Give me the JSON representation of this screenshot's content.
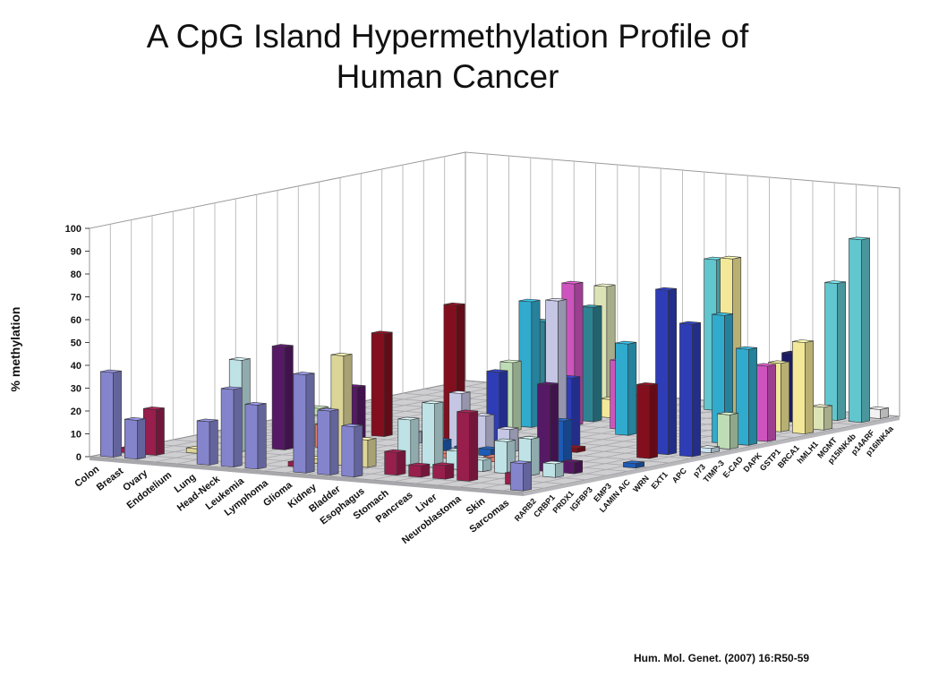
{
  "title_line1": "A CpG Island Hypermethylation Profile of",
  "title_line2": "Human Cancer",
  "citation": "Hum. Mol. Genet. (2007) 16:R50-59",
  "chart_data": {
    "type": "bar3d",
    "title": "A CpG Island Hypermethylation Profile of Human Cancer",
    "zlabel": "% methylation",
    "zlim": [
      0,
      100
    ],
    "z_ticks": [
      "0",
      "10",
      "20",
      "30",
      "40",
      "50",
      "60",
      "70",
      "80",
      "90",
      "100"
    ],
    "cancers": [
      "Colon",
      "Breast",
      "Ovary",
      "Endotelium",
      "Lung",
      "Head-Neck",
      "Leukemia",
      "Lymphoma",
      "Glioma",
      "Kidney",
      "Bladder",
      "Esophagus",
      "Stomach",
      "Pancreas",
      "Liver",
      "Neuroblastoma",
      "Skin",
      "Sarcomas"
    ],
    "genes": [
      "p16INK4a",
      "p14ARF",
      "p15INK4b",
      "MGMT",
      "hMLH1",
      "BRCA1",
      "GSTP1",
      "DAPK",
      "E-CAD",
      "TIMP-3",
      "p73",
      "APC",
      "EXT1",
      "WRN",
      "LAMIN A/C",
      "EMP3",
      "IGFBP3",
      "PRDX1",
      "CRBP1",
      "RARB2"
    ],
    "gene_colors": [
      "#8b8bd8",
      "#a02050",
      "#e8e0a0",
      "#c8eef2",
      "#5a1a6a",
      "#f08070",
      "#2060c0",
      "#cfd0f0",
      "#8a1020",
      "#3040c0",
      "#d8f0ff",
      "#c8e8c0",
      "#33b3d8",
      "#d858c8",
      "#308a9a",
      "#fff4a0",
      "#e8f0c0",
      "#1c1c6a",
      "#66d0d8",
      "#ffffff"
    ],
    "values": [
      {
        "cancer": "Colon",
        "gene": "p16INK4a",
        "value": 37
      },
      {
        "cancer": "Breast",
        "gene": "p16INK4a",
        "value": 17
      },
      {
        "cancer": "Lung",
        "gene": "p16INK4a",
        "value": 19
      },
      {
        "cancer": "Head-Neck",
        "gene": "p16INK4a",
        "value": 34
      },
      {
        "cancer": "Leukemia",
        "gene": "p16INK4a",
        "value": 28
      },
      {
        "cancer": "Glioma",
        "gene": "p16INK4a",
        "value": 43
      },
      {
        "cancer": "Kidney",
        "gene": "p16INK4a",
        "value": 28
      },
      {
        "cancer": "Bladder",
        "gene": "p16INK4a",
        "value": 22
      },
      {
        "cancer": "Sarcomas",
        "gene": "p16INK4a",
        "value": 12
      },
      {
        "cancer": "Breast",
        "gene": "p14ARF",
        "value": 20
      },
      {
        "cancer": "Colon",
        "gene": "p14ARF",
        "value": 2
      },
      {
        "cancer": "Lymphoma",
        "gene": "p14ARF",
        "value": 2
      },
      {
        "cancer": "Esophagus",
        "gene": "p14ARF",
        "value": 10
      },
      {
        "cancer": "Stomach",
        "gene": "p14ARF",
        "value": 5
      },
      {
        "cancer": "Pancreas",
        "gene": "p14ARF",
        "value": 6
      },
      {
        "cancer": "Liver",
        "gene": "p14ARF",
        "value": 30
      },
      {
        "cancer": "Skin",
        "gene": "p14ARF",
        "value": 5
      },
      {
        "cancer": "Ovary",
        "gene": "p15INK4b",
        "value": 2
      },
      {
        "cancer": "Lymphoma",
        "gene": "p15INK4b",
        "value": 2
      },
      {
        "cancer": "Glioma",
        "gene": "p15INK4b",
        "value": 48
      },
      {
        "cancer": "Kidney",
        "gene": "p15INK4b",
        "value": 12
      },
      {
        "cancer": "Endotelium",
        "gene": "MGMT",
        "value": 40
      },
      {
        "cancer": "Bladder",
        "gene": "MGMT",
        "value": 20
      },
      {
        "cancer": "Esophagus",
        "gene": "MGMT",
        "value": 28
      },
      {
        "cancer": "Stomach",
        "gene": "MGMT",
        "value": 8
      },
      {
        "cancer": "Pancreas",
        "gene": "MGMT",
        "value": 5
      },
      {
        "cancer": "Liver",
        "gene": "MGMT",
        "value": 14
      },
      {
        "cancer": "Neuroblastoma",
        "gene": "MGMT",
        "value": 16
      },
      {
        "cancer": "Skin",
        "gene": "MGMT",
        "value": 6
      },
      {
        "cancer": "Lung",
        "gene": "hMLH1",
        "value": 45
      },
      {
        "cancer": "Lymphoma",
        "gene": "hMLH1",
        "value": 30
      },
      {
        "cancer": "Neuroblastoma",
        "gene": "hMLH1",
        "value": 38
      },
      {
        "cancer": "Skin",
        "gene": "hMLH1",
        "value": 5
      },
      {
        "cancer": "Head-Neck",
        "gene": "BRCA1",
        "value": 10
      },
      {
        "cancer": "Bladder",
        "gene": "BRCA1",
        "value": 2
      },
      {
        "cancer": "Stomach",
        "gene": "BRCA1",
        "value": 2
      },
      {
        "cancer": "Kidney",
        "gene": "GSTP1",
        "value": 5
      },
      {
        "cancer": "Bladder",
        "gene": "GSTP1",
        "value": 3
      },
      {
        "cancer": "Esophagus",
        "gene": "GSTP1",
        "value": 3
      },
      {
        "cancer": "Liver",
        "gene": "GSTP1",
        "value": 18
      },
      {
        "cancer": "Sarcomas",
        "gene": "GSTP1",
        "value": 2
      },
      {
        "cancer": "Lymphoma",
        "gene": "DAPK",
        "value": 5
      },
      {
        "cancer": "Kidney",
        "gene": "DAPK",
        "value": 24
      },
      {
        "cancer": "Bladder",
        "gene": "DAPK",
        "value": 15
      },
      {
        "cancer": "Esophagus",
        "gene": "DAPK",
        "value": 10
      },
      {
        "cancer": "Stomach",
        "gene": "DAPK",
        "value": 6
      },
      {
        "cancer": "Pancreas",
        "gene": "DAPK",
        "value": 68
      },
      {
        "cancer": "Head-Neck",
        "gene": "E-CAD",
        "value": 45
      },
      {
        "cancer": "Glioma",
        "gene": "E-CAD",
        "value": 60
      },
      {
        "cancer": "Pancreas",
        "gene": "E-CAD",
        "value": 2
      },
      {
        "cancer": "Skin",
        "gene": "E-CAD",
        "value": 32
      },
      {
        "cancer": "Kidney",
        "gene": "TIMP-3",
        "value": 30
      },
      {
        "cancer": "Stomach",
        "gene": "TIMP-3",
        "value": 30
      },
      {
        "cancer": "Skin",
        "gene": "TIMP-3",
        "value": 72
      },
      {
        "cancer": "Sarcomas",
        "gene": "TIMP-3",
        "value": 58
      },
      {
        "cancer": "Esophagus",
        "gene": "p73",
        "value": 4
      },
      {
        "cancer": "Sarcomas",
        "gene": "p73",
        "value": 2
      },
      {
        "cancer": "Colon",
        "gene": "APC",
        "value": 3
      },
      {
        "cancer": "Glioma",
        "gene": "APC",
        "value": 30
      },
      {
        "cancer": "Sarcomas",
        "gene": "APC",
        "value": 15
      },
      {
        "cancer": "Glioma",
        "gene": "EXT1",
        "value": 55
      },
      {
        "cancer": "Stomach",
        "gene": "EXT1",
        "value": 40
      },
      {
        "cancer": "Skin",
        "gene": "EXT1",
        "value": 56
      },
      {
        "cancer": "Sarcomas",
        "gene": "EXT1",
        "value": 42
      },
      {
        "cancer": "Kidney",
        "gene": "WRN",
        "value": 62
      },
      {
        "cancer": "Esophagus",
        "gene": "WRN",
        "value": 30
      },
      {
        "cancer": "Skin",
        "gene": "WRN",
        "value": 8
      },
      {
        "cancer": "Sarcomas",
        "gene": "WRN",
        "value": 33
      },
      {
        "cancer": "Kidney",
        "gene": "LAMIN A/C",
        "value": 50
      },
      {
        "cancer": "Lymphoma",
        "gene": "LAMIN A/C",
        "value": 42
      },
      {
        "cancer": "Skin",
        "gene": "LAMIN A/C",
        "value": 30
      },
      {
        "cancer": "Kidney",
        "gene": "EMP3",
        "value": 8
      },
      {
        "cancer": "Lymphoma",
        "gene": "EMP3",
        "value": 8
      },
      {
        "cancer": "Liver",
        "gene": "EMP3",
        "value": 74
      },
      {
        "cancer": "Skin",
        "gene": "EMP3",
        "value": 30
      },
      {
        "cancer": "Sarcomas",
        "gene": "EMP3",
        "value": 40
      },
      {
        "cancer": "Glioma",
        "gene": "IGFBP3",
        "value": 55
      },
      {
        "cancer": "Sarcomas",
        "gene": "IGFBP3",
        "value": 10
      },
      {
        "cancer": "Lymphoma",
        "gene": "PRDX1",
        "value": 15
      },
      {
        "cancer": "Neuroblastoma",
        "gene": "PRDX1",
        "value": 30
      },
      {
        "cancer": "Esophagus",
        "gene": "CRBP1",
        "value": 66
      },
      {
        "cancer": "Skin",
        "gene": "CRBP1",
        "value": 60
      },
      {
        "cancer": "Sarcomas",
        "gene": "CRBP1",
        "value": 80
      },
      {
        "cancer": "Sarcomas",
        "gene": "RARB2",
        "value": 4
      }
    ]
  }
}
